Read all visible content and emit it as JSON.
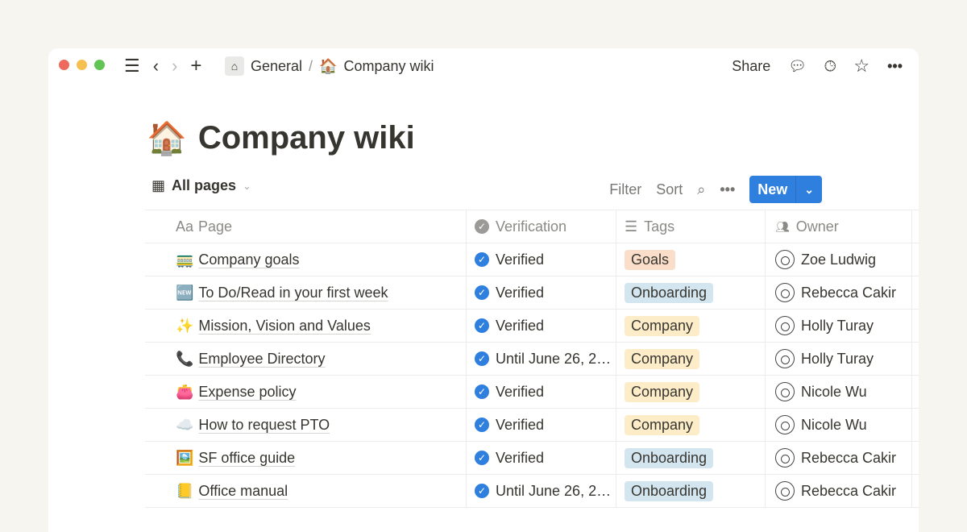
{
  "window": {
    "controls": {
      "close": "#ee6a5f",
      "minimize": "#f5c04f",
      "maximize": "#61c454"
    }
  },
  "topbar": {
    "breadcrumb": [
      {
        "label": "General",
        "icon": "home-icon"
      },
      {
        "label": "Company wiki",
        "icon": "🏠"
      }
    ],
    "separator": "/",
    "share_label": "Share"
  },
  "page": {
    "icon": "🏠",
    "title": "Company wiki"
  },
  "view": {
    "label": "All pages",
    "filter": "Filter",
    "sort": "Sort",
    "new_label": "New",
    "accent": "#2f80de"
  },
  "columns": [
    {
      "icon": "Aa",
      "label": "Page"
    },
    {
      "icon": "verified-icon",
      "label": "Verification"
    },
    {
      "icon": "list-icon",
      "label": "Tags"
    },
    {
      "icon": "people-icon",
      "label": "Owner"
    }
  ],
  "tag_colors": {
    "Goals": "#fadec9",
    "Onboarding": "#d3e5ef",
    "Company": "#fdecc8"
  },
  "rows": [
    {
      "icon": "🚃",
      "page": "Company goals",
      "verification": "Verified",
      "tag": "Goals",
      "owner": "Zoe Ludwig"
    },
    {
      "icon": "🆕",
      "page": "To Do/Read in your first week",
      "verification": "Verified",
      "tag": "Onboarding",
      "owner": "Rebecca Cakir"
    },
    {
      "icon": "✨",
      "page": "Mission, Vision and Values",
      "verification": "Verified",
      "tag": "Company",
      "owner": "Holly Turay"
    },
    {
      "icon": "📞",
      "page": "Employee Directory",
      "verification": "Until June 26, 2…",
      "tag": "Company",
      "owner": "Holly Turay"
    },
    {
      "icon": "👛",
      "page": "Expense policy",
      "verification": "Verified",
      "tag": "Company",
      "owner": "Nicole Wu"
    },
    {
      "icon": "☁️",
      "page": "How to request PTO",
      "verification": "Verified",
      "tag": "Company",
      "owner": "Nicole Wu"
    },
    {
      "icon": "🖼️",
      "page": "SF office guide",
      "verification": "Verified",
      "tag": "Onboarding",
      "owner": "Rebecca Cakir"
    },
    {
      "icon": "📒",
      "page": "Office manual",
      "verification": "Until June 26, 2…",
      "tag": "Onboarding",
      "owner": "Rebecca Cakir"
    }
  ]
}
